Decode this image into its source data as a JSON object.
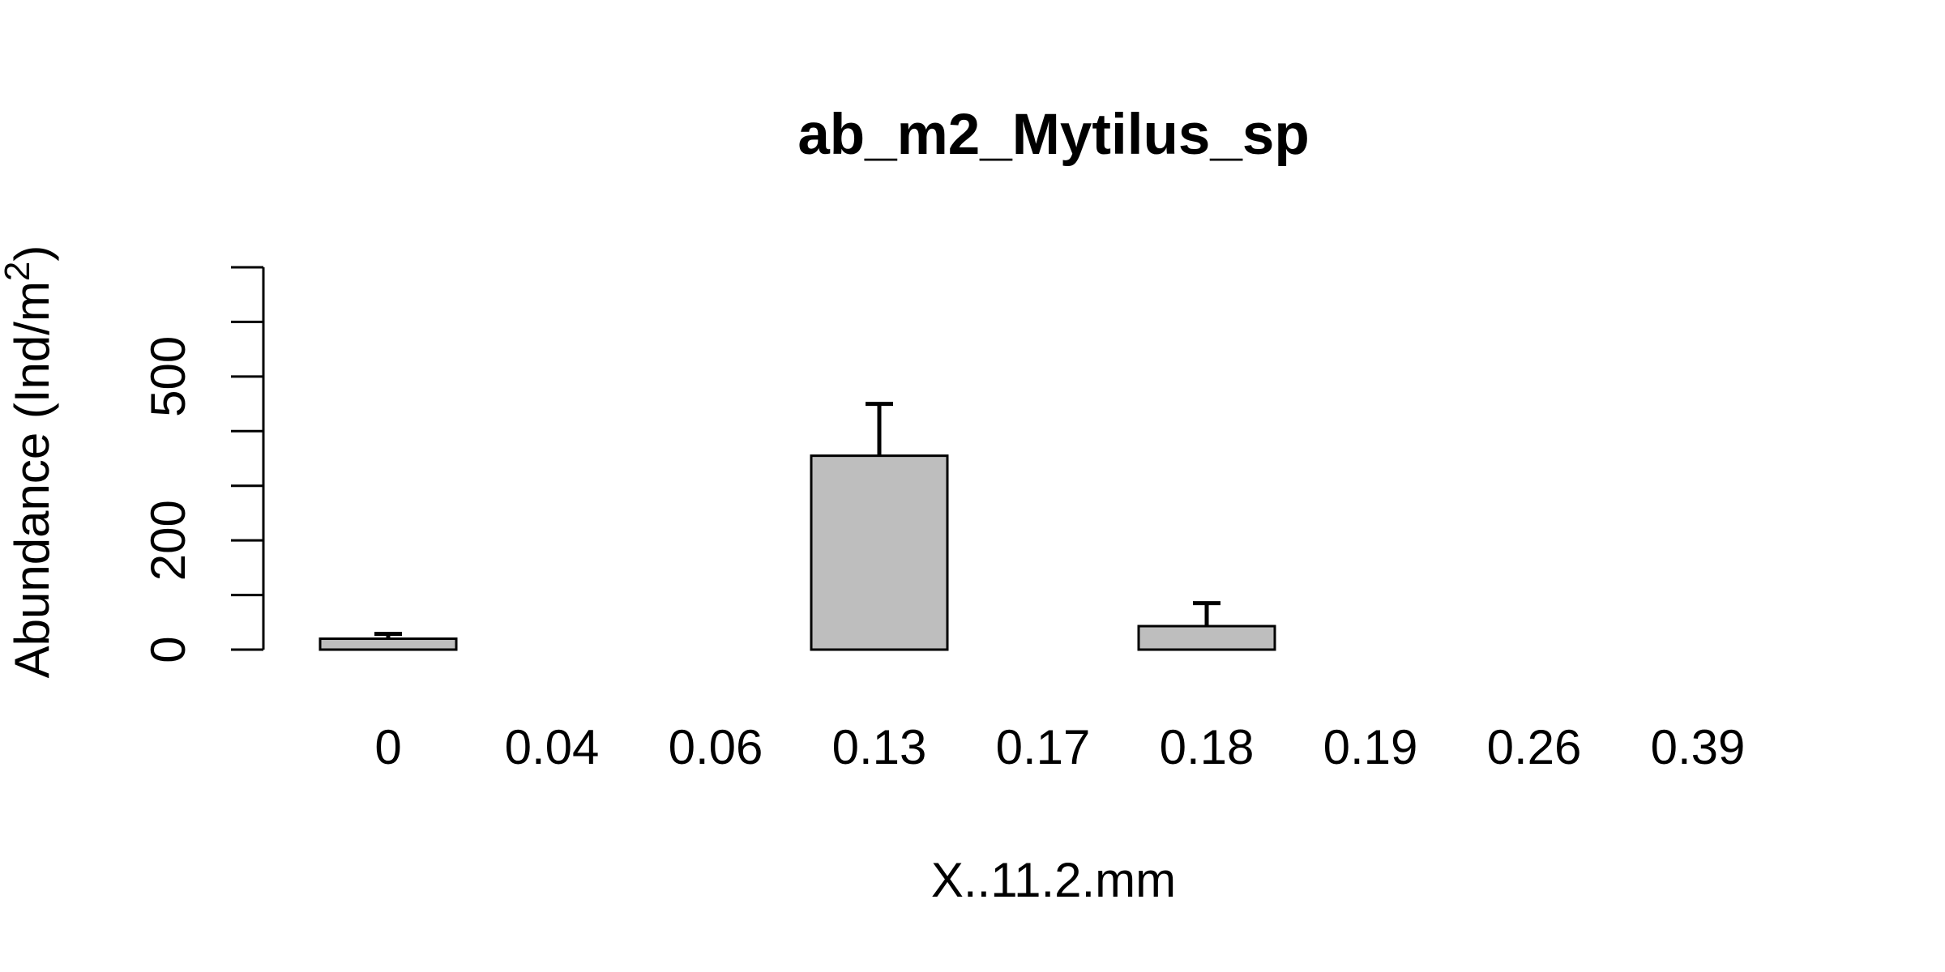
{
  "chart_data": {
    "type": "bar",
    "title": "ab_m2_Mytilus_sp",
    "xlabel": "X..11.2.mm",
    "ylabel": "Abundance (Ind/m",
    "ylabel_superscript": "2",
    "ylabel_suffix": ")",
    "categories": [
      "0",
      "0.04",
      "0.06",
      "0.13",
      "0.17",
      "0.18",
      "0.19",
      "0.26",
      "0.39"
    ],
    "values": [
      20,
      0,
      0,
      355,
      0,
      43,
      0,
      0,
      0
    ],
    "error_upper": [
      29,
      0,
      0,
      450,
      0,
      85,
      0,
      0,
      0
    ],
    "error_lower": [
      20,
      0,
      0,
      355,
      0,
      43,
      0,
      0,
      0
    ],
    "ylim": [
      0,
      700
    ],
    "yticks": [
      0,
      100,
      200,
      300,
      400,
      500,
      600,
      700
    ],
    "ytick_labels": [
      "0",
      "",
      "200",
      "",
      "",
      "500",
      "",
      ""
    ],
    "bar_color": "#bebebe",
    "bar_border_color": "#000000",
    "grid": false,
    "legend": "none"
  }
}
